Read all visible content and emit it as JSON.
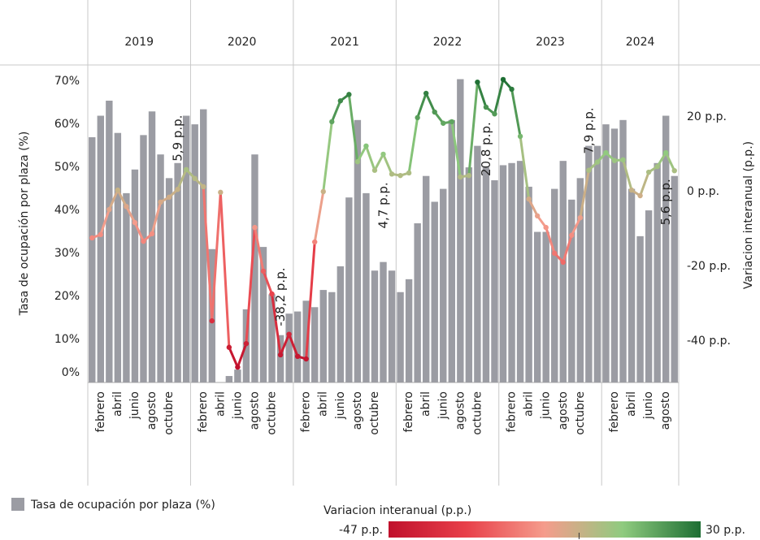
{
  "chart_data": {
    "type": "combo",
    "y_label": "Tasa de ocupación por plaza (%)",
    "y2_label": "Variacion interanual (p.p.)",
    "category_groups": [
      {
        "label": "2019",
        "size": 12
      },
      {
        "label": "2020",
        "size": 12
      },
      {
        "label": "2021",
        "size": 12
      },
      {
        "label": "2022",
        "size": 12
      },
      {
        "label": "2023",
        "size": 12
      },
      {
        "label": "2024",
        "size": 9
      }
    ],
    "categories": [
      null,
      "febrero",
      null,
      "abril",
      null,
      "junio",
      null,
      "agosto",
      null,
      "octubre",
      null,
      null,
      null,
      "febrero",
      null,
      "abril",
      null,
      "junio",
      null,
      "agosto",
      null,
      "octubre",
      null,
      null,
      null,
      "febrero",
      null,
      "abril",
      null,
      "junio",
      null,
      "agosto",
      null,
      "octubre",
      null,
      null,
      null,
      "febrero",
      null,
      "abril",
      null,
      "junio",
      null,
      "agosto",
      null,
      "octubre",
      null,
      null,
      null,
      "febrero",
      null,
      "abril",
      null,
      "junio",
      null,
      "agosto",
      null,
      "octubre",
      null,
      null,
      null,
      "febrero",
      null,
      "abril",
      null,
      "junio",
      null,
      "agosto",
      null
    ],
    "series": [
      {
        "name": "Tasa de ocupación por plaza (%)",
        "type": "bar",
        "color": "#9b9ca3",
        "values": [
          57,
          62,
          65.5,
          58,
          44,
          49.5,
          57.5,
          63,
          53,
          47.5,
          51,
          62,
          60,
          63.5,
          31,
          0,
          1.5,
          3,
          17,
          53,
          31.5,
          20.5,
          11,
          16,
          16.5,
          19,
          17.5,
          21.5,
          21,
          27,
          43,
          61,
          44,
          26,
          28,
          26,
          21,
          24,
          37,
          48,
          42,
          45,
          61,
          70.5,
          50,
          55,
          50,
          47,
          50.5,
          51,
          51.5,
          45.5,
          35,
          35,
          45,
          51.5,
          42.5,
          47.5,
          55,
          55,
          60,
          59,
          61,
          45,
          34,
          40,
          51,
          62,
          48
        ]
      },
      {
        "type": "line",
        "axis": "y2",
        "values": [
          -12.4,
          -11.5,
          -4.8,
          0.4,
          -4,
          -8.3,
          -13.3,
          -11.3,
          -2.8,
          -1.5,
          0.6,
          5.9,
          3.5,
          1.3,
          -34.6,
          -0.2,
          -41.7,
          -47,
          -40.7,
          -9.6,
          -21.3,
          -27.4,
          -43.7,
          -38.2,
          -44.1,
          -44.8,
          -13.5,
          0,
          18.7,
          24.3,
          26,
          8,
          12.2,
          5.7,
          10,
          4.7,
          4.3,
          5,
          19.8,
          26.3,
          21.3,
          18.3,
          18.7,
          3.9,
          4.3,
          29.3,
          22.6,
          20.8,
          30,
          27.4,
          14.8,
          -2,
          -6.5,
          -9.6,
          -16.5,
          -18.9,
          -11.7,
          -7,
          5.7,
          7.9,
          10.4,
          8.3,
          8.5,
          0.4,
          -1.1,
          5.2,
          6.7,
          10.4,
          5.6
        ],
        "value_labels": [
          null,
          null,
          null,
          null,
          null,
          null,
          null,
          null,
          null,
          null,
          null,
          "5,9 p.p.",
          null,
          null,
          null,
          null,
          null,
          null,
          null,
          null,
          null,
          null,
          null,
          "-38,2 p.p.",
          null,
          null,
          null,
          null,
          null,
          null,
          null,
          null,
          null,
          null,
          null,
          "4,7 p.p.",
          null,
          null,
          null,
          null,
          null,
          null,
          null,
          null,
          null,
          null,
          null,
          "20,8 p.p.",
          null,
          null,
          null,
          null,
          null,
          null,
          null,
          null,
          null,
          null,
          null,
          "7,9 p.p.",
          null,
          null,
          null,
          null,
          null,
          null,
          null,
          null,
          "5,6 p.p."
        ]
      }
    ],
    "ylim": [
      0,
      73.8
    ],
    "yticks": [
      {
        "value": 0,
        "label": "0%"
      },
      {
        "value": 10,
        "label": "10%"
      },
      {
        "value": 20,
        "label": "20%"
      },
      {
        "value": 30,
        "label": "30%"
      },
      {
        "value": 40,
        "label": "40%"
      },
      {
        "value": 50,
        "label": "50%"
      },
      {
        "value": 60,
        "label": "60%"
      },
      {
        "value": 70,
        "label": "70%"
      }
    ],
    "y2lim": [
      -51.1,
      33.9
    ],
    "y2ticks": [
      {
        "value": 20,
        "label": "20 p.p."
      },
      {
        "value": 0,
        "label": "0 p.p."
      },
      {
        "value": -20,
        "label": "-20 p.p."
      },
      {
        "value": -40,
        "label": "-40 p.p."
      }
    ],
    "color_scale": {
      "title": "Variacion interanual (p.p.)",
      "min": {
        "value": -47,
        "label": "-47 p.p."
      },
      "max": {
        "value": 30,
        "label": "30 p.p."
      },
      "ticks": [
        0
      ],
      "colors": [
        "#c0102c",
        "#e8404a",
        "#f59c8c",
        "#8fcb7f",
        "#1d6e33"
      ]
    }
  }
}
